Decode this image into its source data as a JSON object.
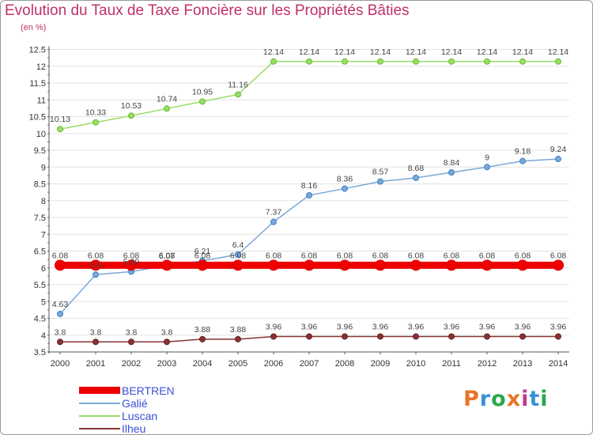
{
  "title": "Evolution du Taux de Taxe Foncière sur les Propriétés Bâties",
  "subtitle": "(en %)",
  "logo": {
    "text": "Proxiti",
    "colors": [
      "#e8742a",
      "#3b8fd8",
      "#2aa84a",
      "#e8742a",
      "#c33a8a",
      "#3b8fd8",
      "#2aa84a"
    ]
  },
  "chart_data": {
    "type": "line",
    "title": "Evolution du Taux de Taxe Foncière sur les Propriétés Bâties",
    "ylabel": "(en %)",
    "xlabel": "",
    "ylim": [
      3.5,
      12.5
    ],
    "yticks": [
      "3.5",
      "4",
      "4.5",
      "5",
      "5.5",
      "6",
      "6.5",
      "7",
      "7.5",
      "8",
      "8.5",
      "9",
      "9.5",
      "10",
      "10.5",
      "11",
      "11.5",
      "12",
      "12.5"
    ],
    "categories": [
      "2000",
      "2001",
      "2002",
      "2003",
      "2004",
      "2005",
      "2006",
      "2007",
      "2008",
      "2009",
      "2010",
      "2011",
      "2012",
      "2013",
      "2014"
    ],
    "series": [
      {
        "name": "BERTREN",
        "color": "#ee0000",
        "marker": "#dd0000",
        "thick": true,
        "values": [
          6.08,
          6.08,
          6.08,
          6.08,
          6.08,
          6.08,
          6.08,
          6.08,
          6.08,
          6.08,
          6.08,
          6.08,
          6.08,
          6.08,
          6.08
        ],
        "labels": [
          "6.08",
          "6.08",
          "6.08",
          "6.08",
          "6.08",
          "6.08",
          "6.08",
          "6.08",
          "6.08",
          "6.08",
          "6.08",
          "6.08",
          "6.08",
          "6.08",
          "6.08"
        ]
      },
      {
        "name": "Galié",
        "color": "#7aa8d8",
        "marker": "#3b7fc4",
        "thick": false,
        "values": [
          4.63,
          5.8,
          5.89,
          6.07,
          6.21,
          6.4,
          7.37,
          8.16,
          8.36,
          8.57,
          8.68,
          8.84,
          9.0,
          9.18,
          9.24
        ],
        "labels": [
          "4.63",
          "5.8",
          "5.89",
          "6.07",
          "6.21",
          "6.4",
          "7.37",
          "8.16",
          "8.36",
          "8.57",
          "8.68",
          "8.84",
          "9",
          "9.18",
          "9.24"
        ]
      },
      {
        "name": "Luscan",
        "color": "#99dd66",
        "marker": "#66bb33",
        "thick": false,
        "values": [
          10.13,
          10.33,
          10.53,
          10.74,
          10.95,
          11.16,
          12.14,
          12.14,
          12.14,
          12.14,
          12.14,
          12.14,
          12.14,
          12.14,
          12.14
        ],
        "labels": [
          "10.13",
          "10.33",
          "10.53",
          "10.74",
          "10.95",
          "11.16",
          "12.14",
          "12.14",
          "12.14",
          "12.14",
          "12.14",
          "12.14",
          "12.14",
          "12.14",
          "12.14"
        ]
      },
      {
        "name": "Ilheu",
        "color": "#883333",
        "marker": "#661f1f",
        "thick": false,
        "values": [
          3.8,
          3.8,
          3.8,
          3.8,
          3.88,
          3.88,
          3.96,
          3.96,
          3.96,
          3.96,
          3.96,
          3.96,
          3.96,
          3.96,
          3.96
        ],
        "labels": [
          "3.8",
          "3.8",
          "3.8",
          "3.8",
          "3.88",
          "3.88",
          "3.96",
          "3.96",
          "3.96",
          "3.96",
          "3.96",
          "3.96",
          "3.96",
          "3.96",
          "3.96"
        ]
      }
    ]
  }
}
